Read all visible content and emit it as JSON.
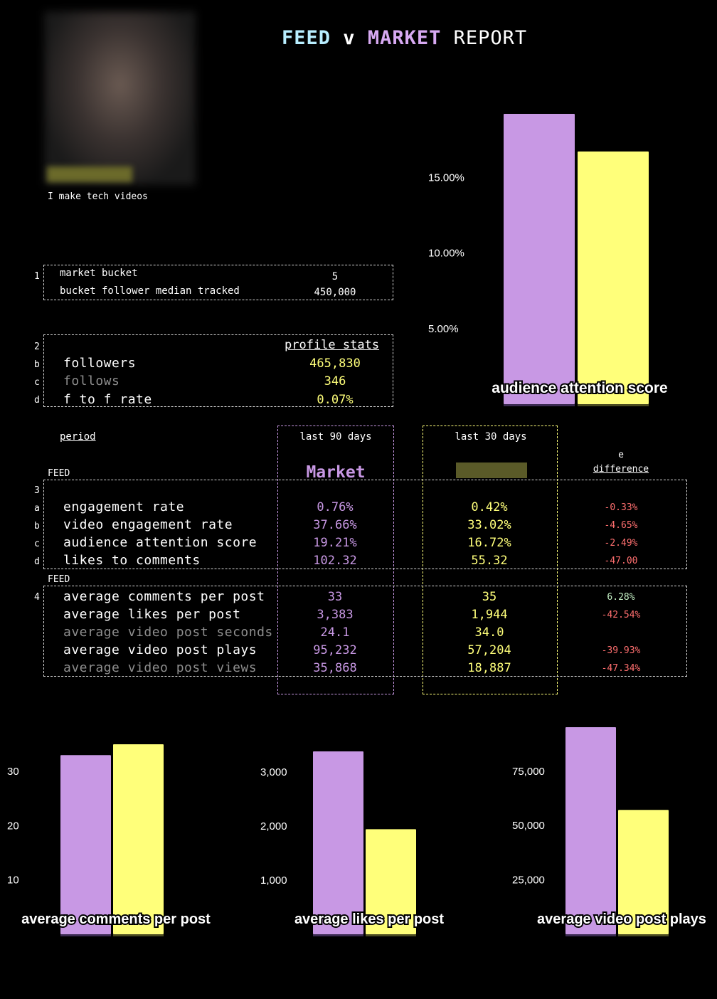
{
  "title": {
    "feed": "FEED",
    "v": "v",
    "market": "MARKET",
    "report": "REPORT"
  },
  "profile": {
    "bio": "I make tech videos"
  },
  "section1": {
    "index": "1",
    "rows": [
      {
        "label": "market bucket",
        "value": "5"
      },
      {
        "label": "bucket follower median tracked",
        "value": "450,000"
      }
    ]
  },
  "section2": {
    "index": "2",
    "header": "profile stats",
    "rows": [
      {
        "idx": "b",
        "label": "followers",
        "value": "465,830"
      },
      {
        "idx": "c",
        "label": "follows",
        "value": "346"
      },
      {
        "idx": "d",
        "label": "f to f rate",
        "value": "0.07%"
      }
    ]
  },
  "period": {
    "label": "period",
    "col_market": "last 90 days",
    "col_feed": "last 30 days",
    "market_title": "Market",
    "diff_prefix": "e",
    "diff_label": "difference"
  },
  "section3": {
    "index": "3",
    "tag": "FEED",
    "rows": [
      {
        "idx": "a",
        "label": "engagement rate",
        "market": "0.76%",
        "feed": "0.42%",
        "diff": "-0.33%",
        "diff_color": "red"
      },
      {
        "idx": "b",
        "label": "video engagement rate",
        "market": "37.66%",
        "feed": "33.02%",
        "diff": "-4.65%",
        "diff_color": "red"
      },
      {
        "idx": "c",
        "label": "audience attention score",
        "market": "19.21%",
        "feed": "16.72%",
        "diff": "-2.49%",
        "diff_color": "red"
      },
      {
        "idx": "d",
        "label": "likes to comments",
        "market": "102.32",
        "feed": "55.32",
        "diff": "-47.00",
        "diff_color": "red"
      }
    ]
  },
  "section4": {
    "index": "4",
    "tag": "FEED",
    "rows": [
      {
        "label": "average comments per post",
        "market": "33",
        "feed": "35",
        "diff": "6.28%",
        "diff_color": "green",
        "dim": false
      },
      {
        "label": "average likes per post",
        "market": "3,383",
        "feed": "1,944",
        "diff": "-42.54%",
        "diff_color": "red",
        "dim": false
      },
      {
        "label": "average video post seconds",
        "market": "24.1",
        "feed": "34.0",
        "diff": "",
        "diff_color": "red",
        "dim": true
      },
      {
        "label": "average video post plays",
        "market": "95,232",
        "feed": "57,204",
        "diff": "-39.93%",
        "diff_color": "red",
        "dim": false
      },
      {
        "label": "average video post views",
        "market": "35,868",
        "feed": "18,887",
        "diff": "-47.34%",
        "diff_color": "red",
        "dim": true
      }
    ]
  },
  "colors": {
    "market": "#c898e4",
    "feed": "#ffff7a"
  },
  "chart_data": [
    {
      "type": "bar",
      "title": "audience attention score",
      "series": [
        {
          "values": [
            19.21
          ]
        },
        {
          "values": [
            16.72
          ]
        }
      ],
      "yticks": [
        "5.00%",
        "10.00%",
        "15.00%"
      ],
      "ylim": [
        0,
        19.21
      ]
    },
    {
      "type": "bar",
      "title": "average comments per post",
      "series": [
        {
          "values": [
            33
          ]
        },
        {
          "values": [
            35
          ]
        }
      ],
      "yticks": [
        "10",
        "20",
        "30"
      ],
      "ylim": [
        0,
        35
      ]
    },
    {
      "type": "bar",
      "title": "average likes per post",
      "series": [
        {
          "values": [
            3383
          ]
        },
        {
          "values": [
            1944
          ]
        }
      ],
      "yticks": [
        "1,000",
        "2,000",
        "3,000"
      ],
      "ylim": [
        0,
        3383
      ]
    },
    {
      "type": "bar",
      "title": "average video post plays",
      "series": [
        {
          "values": [
            95232
          ]
        },
        {
          "values": [
            57204
          ]
        }
      ],
      "yticks": [
        "25,000",
        "50,000",
        "75,000"
      ],
      "ylim": [
        0,
        95232
      ]
    }
  ]
}
